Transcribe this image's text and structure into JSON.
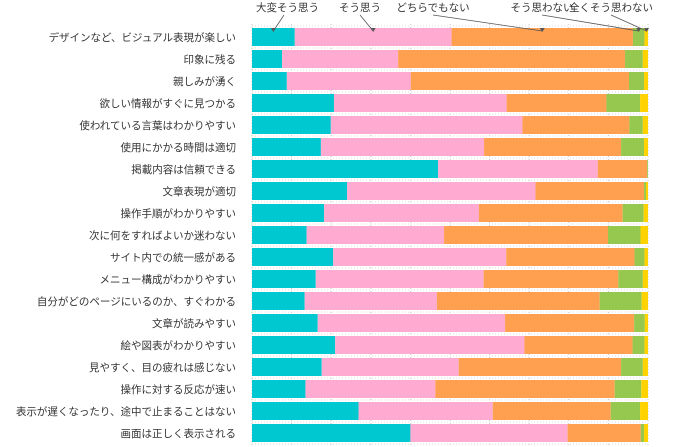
{
  "chart_data": {
    "type": "bar",
    "orientation": "horizontal",
    "stacked": true,
    "percent": true,
    "title": "",
    "xlabel": "",
    "ylabel": "",
    "xlim": [
      0,
      100
    ],
    "grid": true,
    "legend_position": "top",
    "categories": [
      "デザインなど、ビジュアル表現が楽しい",
      "印象に残る",
      "親しみが湧く",
      "欲しい情報がすぐに見つかる",
      "使われている言葉はわかりやすい",
      "使用にかかる時間は適切",
      "掲載内容は信頼できる",
      "文章表現が適切",
      "操作手順がわかりやすい",
      "次に何をすればよいか迷わない",
      "サイト内での統一感がある",
      "メニュー構成がわかりやすい",
      "自分がどのページにいるのか、すぐわかる",
      "文章が読みやすい",
      "絵や図表がわかりやすい",
      "見やすく、目の疲れは感じない",
      "操作に対する反応が速い",
      "表示が遅くなったり、途中で止まることはない",
      "画面は正しく表示される"
    ],
    "series": [
      {
        "name": "大変そう思う",
        "color": "#00c8d0",
        "values": [
          10.8,
          7.6,
          8.8,
          20.7,
          19.9,
          17.4,
          47.0,
          24.0,
          18.2,
          13.8,
          20.5,
          16.1,
          13.3,
          16.6,
          21.0,
          17.6,
          13.5,
          26.9,
          40.0
        ]
      },
      {
        "name": "そう思う",
        "color": "#ffaad0",
        "values": [
          39.6,
          29.3,
          31.3,
          43.6,
          48.4,
          41.2,
          40.3,
          47.6,
          39.1,
          34.7,
          43.7,
          42.4,
          33.4,
          47.3,
          47.8,
          34.6,
          32.8,
          33.9,
          39.7
        ]
      },
      {
        "name": "どちらでもない",
        "color": "#ffa050",
        "values": [
          45.8,
          57.3,
          55.1,
          25.2,
          27.0,
          34.6,
          12.5,
          27.4,
          36.3,
          41.4,
          32.4,
          34.0,
          41.1,
          32.6,
          27.3,
          41.0,
          45.3,
          29.8,
          18.5
        ]
      },
      {
        "name": "そう思わない",
        "color": "#96c850",
        "values": [
          2.9,
          4.5,
          3.8,
          8.5,
          3.4,
          5.8,
          0.2,
          0.5,
          5.3,
          8.2,
          2.5,
          6.2,
          10.6,
          2.7,
          3.0,
          5.5,
          6.7,
          7.4,
          0.8
        ]
      },
      {
        "name": "全くそう思わない",
        "color": "#ffd200",
        "values": [
          0.9,
          1.3,
          1.0,
          2.0,
          1.3,
          1.0,
          0.0,
          0.5,
          1.1,
          1.9,
          0.9,
          1.3,
          1.6,
          0.8,
          0.9,
          1.3,
          1.7,
          2.0,
          1.0
        ]
      }
    ]
  }
}
